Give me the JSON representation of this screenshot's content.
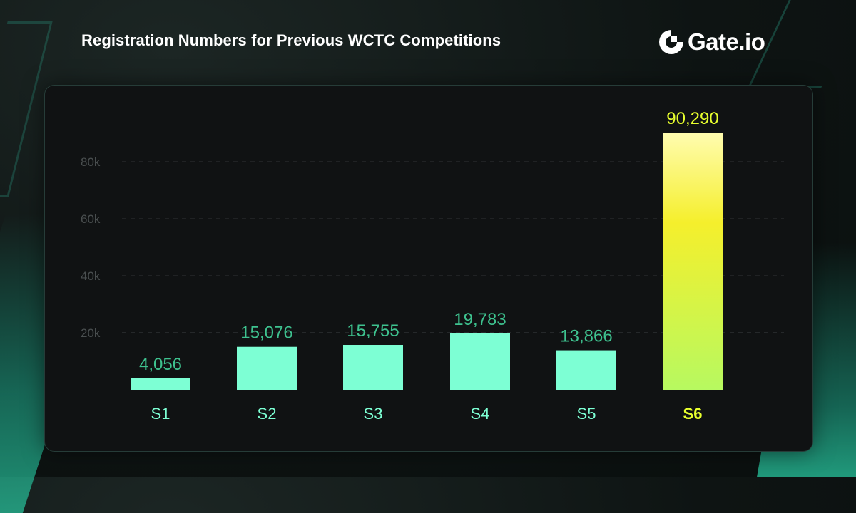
{
  "title": "Registration Numbers for Previous WCTC Competitions",
  "logo": {
    "text": "Gate.io",
    "icon": "gate-logo-icon"
  },
  "colors": {
    "bar": "#7dffd4",
    "value_label": "#3ec28f",
    "category_label": "#7dffd4",
    "highlight_label": "#e8ff2e",
    "highlight_top": "#fffcb0",
    "highlight_mid": "#f5ef2c",
    "highlight_bottom": "#b7f960",
    "gridline": "#3a3f40",
    "tick_label": "#4a4f50"
  },
  "chart_data": {
    "type": "bar",
    "title": "Registration Numbers for Previous WCTC Competitions",
    "categories": [
      "S1",
      "S2",
      "S3",
      "S4",
      "S5",
      "S6"
    ],
    "values": [
      4056,
      15076,
      15755,
      19783,
      13866,
      90290
    ],
    "value_labels": [
      "4,056",
      "15,076",
      "15,755",
      "19,783",
      "13,866",
      "90,290"
    ],
    "highlight_index": 5,
    "ylim": [
      0,
      90290
    ],
    "yticks": [
      20000,
      40000,
      60000,
      80000
    ],
    "ytick_labels": [
      "20k",
      "40k",
      "60k",
      "80k"
    ],
    "grid": true,
    "legend": "none"
  }
}
